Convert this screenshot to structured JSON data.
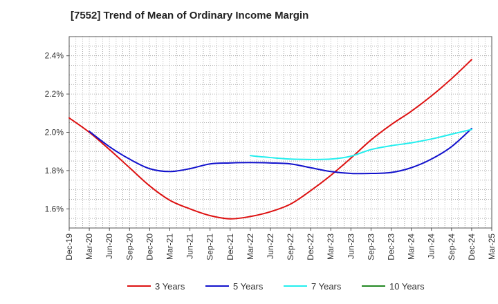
{
  "chart_data": {
    "type": "line",
    "title": "[7552]  Trend of Mean of Ordinary Income Margin",
    "xlabel": "",
    "ylabel": "",
    "x_ticks": [
      "Dec-19",
      "Mar-20",
      "Jun-20",
      "Sep-20",
      "Dec-20",
      "Mar-21",
      "Jun-21",
      "Sep-21",
      "Dec-21",
      "Mar-22",
      "Jun-22",
      "Sep-22",
      "Dec-22",
      "Mar-23",
      "Jun-23",
      "Sep-23",
      "Dec-23",
      "Mar-24",
      "Jun-24",
      "Sep-24",
      "Dec-24",
      "Mar-25"
    ],
    "y_ticks": [
      "1.6%",
      "1.8%",
      "2.0%",
      "2.2%",
      "2.4%"
    ],
    "y_tick_values": [
      1.6,
      1.8,
      2.0,
      2.2,
      2.4
    ],
    "ylim": [
      1.5,
      2.5
    ],
    "grid": true,
    "legend_position": "bottom",
    "series": [
      {
        "name": "3 Years",
        "color": "#dd1111",
        "x": [
          "Dec-19",
          "Mar-20",
          "Jun-20",
          "Sep-20",
          "Dec-20",
          "Mar-21",
          "Jun-21",
          "Sep-21",
          "Dec-21",
          "Mar-22",
          "Jun-22",
          "Sep-22",
          "Dec-22",
          "Mar-23",
          "Jun-23",
          "Sep-23",
          "Dec-23",
          "Mar-24",
          "Jun-24",
          "Sep-24",
          "Dec-24"
        ],
        "values": [
          2.075,
          2.0,
          1.91,
          1.815,
          1.72,
          1.645,
          1.6,
          1.565,
          1.548,
          1.56,
          1.585,
          1.625,
          1.695,
          1.775,
          1.865,
          1.96,
          2.04,
          2.11,
          2.19,
          2.28,
          2.38
        ]
      },
      {
        "name": "5 Years",
        "color": "#1111cc",
        "x": [
          "Mar-20",
          "Jun-20",
          "Sep-20",
          "Dec-20",
          "Mar-21",
          "Jun-21",
          "Sep-21",
          "Dec-21",
          "Mar-22",
          "Jun-22",
          "Sep-22",
          "Dec-22",
          "Mar-23",
          "Jun-23",
          "Sep-23",
          "Dec-23",
          "Mar-24",
          "Jun-24",
          "Sep-24",
          "Dec-24"
        ],
        "values": [
          2.005,
          1.925,
          1.86,
          1.81,
          1.795,
          1.81,
          1.835,
          1.84,
          1.842,
          1.84,
          1.835,
          1.815,
          1.795,
          1.785,
          1.785,
          1.79,
          1.815,
          1.86,
          1.925,
          2.02
        ]
      },
      {
        "name": "7 Years",
        "color": "#22eeee",
        "x": [
          "Mar-22",
          "Jun-22",
          "Sep-22",
          "Dec-22",
          "Mar-23",
          "Jun-23",
          "Sep-23",
          "Dec-23",
          "Mar-24",
          "Jun-24",
          "Sep-24",
          "Dec-24"
        ],
        "values": [
          1.878,
          1.868,
          1.86,
          1.858,
          1.86,
          1.875,
          1.91,
          1.93,
          1.945,
          1.965,
          1.99,
          2.015
        ]
      },
      {
        "name": "10 Years",
        "color": "#228822",
        "x": [],
        "values": []
      }
    ]
  }
}
